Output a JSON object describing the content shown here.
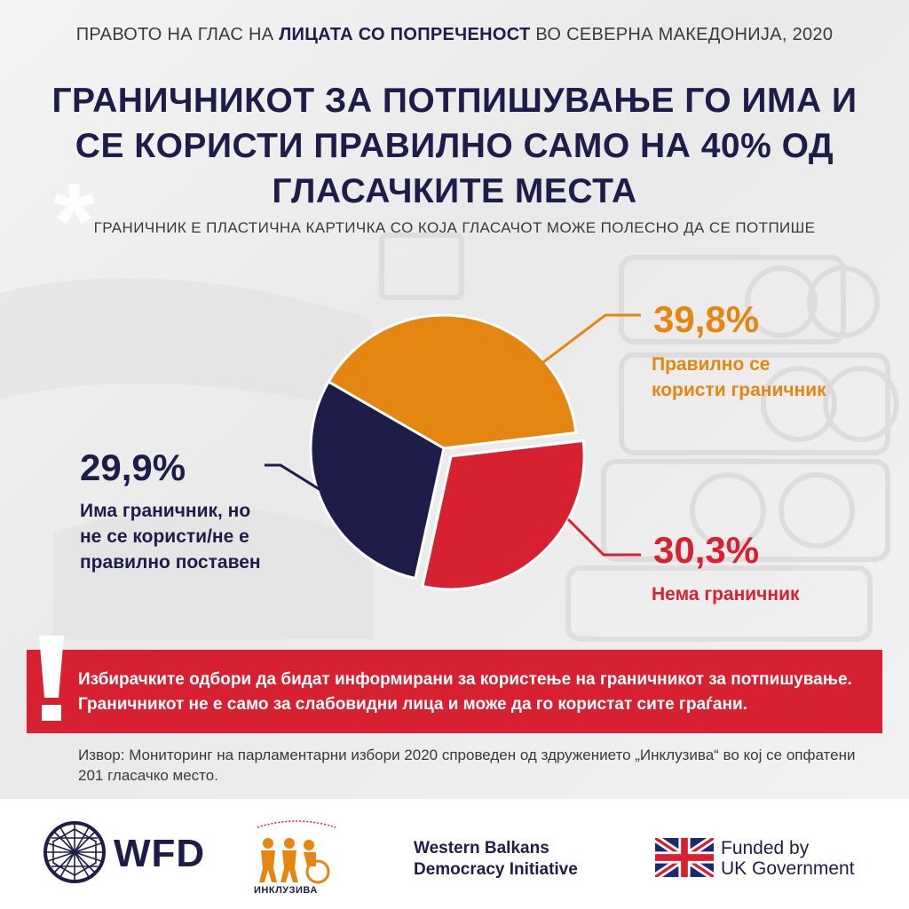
{
  "header": {
    "top_pre": "ПРАВОТО НА ГЛАС НА ",
    "top_bold": "ЛИЦАТА СО ПОПРЕЧЕНОСТ",
    "top_post": " ВО СЕВЕРНА МАКЕДОНИЈА, 2020",
    "headline": "ГРАНИЧНИКОТ ЗА ПОТПИШУВАЊЕ ГО ИМА И СЕ КОРИСТИ ПРАВИЛНО САМО НА 40% ОД ГЛАСАЧКИТЕ МЕСТА",
    "subhead": "ГРАНИЧНИК Е ПЛАСТИЧНА КАРТИЧКА СО КОЈА ГЛАСАЧОТ МОЖЕ ПОЛЕСНО ДА СЕ ПОТПИШЕ"
  },
  "chart_data": {
    "type": "pie",
    "slices": [
      {
        "label_lines": [
          "Правилно се",
          "користи граничник"
        ],
        "value": 39.8,
        "value_text": "39,8%",
        "color": "#e4860f"
      },
      {
        "label_lines": [
          "Нема граничник"
        ],
        "value": 30.3,
        "value_text": "30,3%",
        "color": "#d72130"
      },
      {
        "label_lines": [
          "Има граничник, но",
          "не се користи/не е",
          "правилно поставен"
        ],
        "value": 29.9,
        "value_text": "29,9%",
        "color": "#1e1d4a"
      }
    ]
  },
  "alert": {
    "line1": "Избирачките одбори да бидат информирани за користење на граничникот за потпишување.",
    "line2": "Граничникот не е само за слабовидни лица и може да го користат сите граѓани."
  },
  "source": {
    "text": "Извор: Мониторинг на парламентарни избори 2020 спроведен од здружението „Инклузива“ во кој се опфатени 201 гласачко место."
  },
  "footer": {
    "wfd": "WFD",
    "inkluziva": "ИНКЛУЗИВА",
    "wbdi_line1": "Western Balkans",
    "wbdi_line2": "Democracy Initiative",
    "funded_line1": "Funded by",
    "funded_line2": "UK Government"
  },
  "colors": {
    "navy": "#1e1d4a",
    "orange": "#e4860f",
    "red": "#d72130"
  }
}
